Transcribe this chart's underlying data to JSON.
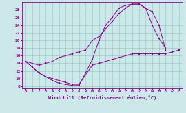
{
  "xlabel": "Windchill (Refroidissement éolien,°C)",
  "xlim": [
    -0.5,
    23.5
  ],
  "ylim": [
    7.5,
    30
  ],
  "yticks": [
    8,
    10,
    12,
    14,
    16,
    18,
    20,
    22,
    24,
    26,
    28
  ],
  "xticks": [
    0,
    1,
    2,
    3,
    4,
    5,
    6,
    7,
    8,
    9,
    10,
    11,
    12,
    13,
    14,
    15,
    16,
    17,
    18,
    19,
    20,
    21,
    22,
    23
  ],
  "bg_color": "#cce8e8",
  "line_color": "#880088",
  "grid_color": "#99cccc",
  "line1_x": [
    0,
    1,
    2,
    3,
    4,
    5,
    6,
    7,
    8,
    9,
    10,
    11,
    12,
    13,
    14,
    15,
    16,
    17,
    18,
    19,
    20,
    21
  ],
  "line1_y": [
    14.5,
    13.0,
    11.5,
    10.5,
    9.5,
    8.8,
    8.5,
    8.2,
    8.2,
    11.5,
    15.0,
    20.0,
    24.0,
    26.0,
    28.5,
    29.2,
    29.5,
    29.5,
    28.5,
    24.0,
    20.5,
    18.0
  ],
  "line2_x": [
    0,
    1,
    2,
    3,
    4,
    5,
    6,
    7,
    8,
    10,
    11,
    12,
    13,
    14,
    15,
    16,
    17,
    18,
    19,
    20,
    21,
    22,
    23
  ],
  "line2_y": [
    14.5,
    13.0,
    11.5,
    10.5,
    10.0,
    9.5,
    9.0,
    8.5,
    8.5,
    13.5,
    14.0,
    14.5,
    15.0,
    15.5,
    16.0,
    16.5,
    16.5,
    16.5,
    16.5,
    16.5,
    16.5,
    17.0,
    17.5
  ],
  "line3_x": [
    0,
    2,
    3,
    4,
    5,
    6,
    7,
    8,
    9,
    10,
    11,
    12,
    13,
    14,
    15,
    16,
    17,
    18,
    19,
    20,
    21
  ],
  "line3_y": [
    14.5,
    13.5,
    14.0,
    14.5,
    15.5,
    16.0,
    16.5,
    17.0,
    17.5,
    20.0,
    21.0,
    23.0,
    25.0,
    27.0,
    28.5,
    29.5,
    29.5,
    28.5,
    27.5,
    24.0,
    17.5
  ]
}
